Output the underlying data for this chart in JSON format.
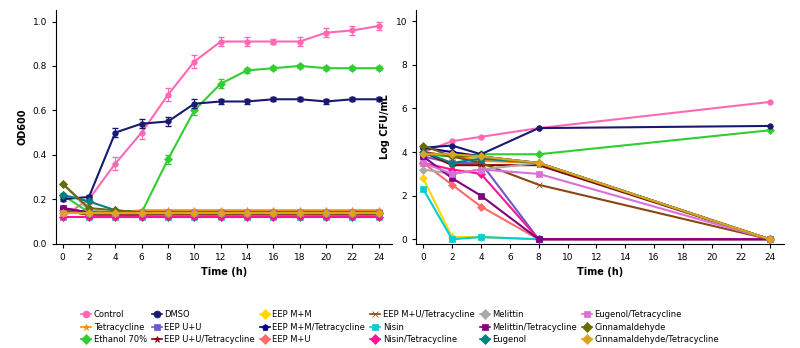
{
  "left_ylabel": "OD600",
  "right_ylabel": "Log CFU/mL",
  "xlabel": "Time (h)",
  "time_left": [
    0,
    2,
    4,
    6,
    8,
    10,
    12,
    14,
    16,
    18,
    20,
    22,
    24
  ],
  "time_right": [
    0,
    2,
    4,
    8,
    24
  ],
  "left_series": {
    "Control": {
      "color": "#FF69B4",
      "marker": "o",
      "data": [
        0.12,
        0.2,
        0.36,
        0.5,
        0.67,
        0.82,
        0.91,
        0.91,
        0.91,
        0.91,
        0.95,
        0.96,
        0.98
      ]
    },
    "Tetracycline": {
      "color": "#FF8C00",
      "marker": "*",
      "data": [
        0.14,
        0.14,
        0.14,
        0.15,
        0.15,
        0.15,
        0.15,
        0.15,
        0.15,
        0.15,
        0.15,
        0.15,
        0.15
      ]
    },
    "Ethanol 70%": {
      "color": "#32CD32",
      "marker": "D",
      "data": [
        0.22,
        0.14,
        0.14,
        0.14,
        0.38,
        0.6,
        0.72,
        0.78,
        0.79,
        0.8,
        0.79,
        0.79,
        0.79
      ]
    },
    "DMSO": {
      "color": "#191970",
      "marker": "o",
      "data": [
        0.2,
        0.21,
        0.5,
        0.54,
        0.55,
        0.63,
        0.64,
        0.64,
        0.65,
        0.65,
        0.64,
        0.65,
        0.65
      ]
    },
    "EEP U+U": {
      "color": "#6A5ACD",
      "marker": "s",
      "data": [
        0.15,
        0.14,
        0.14,
        0.14,
        0.14,
        0.14,
        0.14,
        0.14,
        0.14,
        0.14,
        0.14,
        0.14,
        0.14
      ]
    },
    "EEP U+U/Tetracycline": {
      "color": "#8B0000",
      "marker": "*",
      "data": [
        0.15,
        0.13,
        0.13,
        0.13,
        0.14,
        0.14,
        0.14,
        0.14,
        0.14,
        0.14,
        0.14,
        0.14,
        0.14
      ]
    },
    "EEP M+M": {
      "color": "#FFD700",
      "marker": "D",
      "data": [
        0.15,
        0.14,
        0.14,
        0.14,
        0.14,
        0.14,
        0.14,
        0.14,
        0.14,
        0.14,
        0.14,
        0.14,
        0.14
      ]
    },
    "EEP M+M/Tetracycline": {
      "color": "#00008B",
      "marker": "p",
      "data": [
        0.16,
        0.14,
        0.14,
        0.14,
        0.14,
        0.14,
        0.14,
        0.14,
        0.14,
        0.14,
        0.14,
        0.14,
        0.14
      ]
    },
    "EEP M+U": {
      "color": "#FF6B6B",
      "marker": "D",
      "data": [
        0.15,
        0.13,
        0.13,
        0.14,
        0.14,
        0.14,
        0.14,
        0.14,
        0.14,
        0.14,
        0.14,
        0.14,
        0.14
      ]
    },
    "EEP M+U/Tetracycline": {
      "color": "#8B4513",
      "marker": "x",
      "data": [
        0.15,
        0.13,
        0.13,
        0.13,
        0.13,
        0.13,
        0.13,
        0.13,
        0.13,
        0.13,
        0.13,
        0.13,
        0.13
      ]
    },
    "Nisin": {
      "color": "#00CED1",
      "marker": "s",
      "data": [
        0.12,
        0.12,
        0.12,
        0.12,
        0.12,
        0.12,
        0.12,
        0.12,
        0.12,
        0.12,
        0.12,
        0.12,
        0.12
      ]
    },
    "Nisin/Tetracycline": {
      "color": "#FF1493",
      "marker": "D",
      "data": [
        0.12,
        0.12,
        0.12,
        0.12,
        0.12,
        0.12,
        0.12,
        0.12,
        0.12,
        0.12,
        0.12,
        0.12,
        0.12
      ]
    },
    "Melittin": {
      "color": "#A9A9A9",
      "marker": "D",
      "data": [
        0.27,
        0.15,
        0.14,
        0.14,
        0.14,
        0.14,
        0.14,
        0.14,
        0.14,
        0.14,
        0.14,
        0.14,
        0.14
      ]
    },
    "Melittin/Tetracycline": {
      "color": "#800080",
      "marker": "s",
      "data": [
        0.16,
        0.14,
        0.14,
        0.14,
        0.14,
        0.14,
        0.14,
        0.14,
        0.14,
        0.14,
        0.14,
        0.14,
        0.14
      ]
    },
    "Eugenol": {
      "color": "#008080",
      "marker": "D",
      "data": [
        0.22,
        0.19,
        0.15,
        0.14,
        0.14,
        0.14,
        0.14,
        0.14,
        0.14,
        0.14,
        0.14,
        0.14,
        0.14
      ]
    },
    "Eugenol/Tetracycline": {
      "color": "#DA70D6",
      "marker": "s",
      "data": [
        0.14,
        0.14,
        0.14,
        0.14,
        0.14,
        0.14,
        0.14,
        0.14,
        0.14,
        0.14,
        0.14,
        0.14,
        0.14
      ]
    },
    "Cinnamaldehyde": {
      "color": "#6B6B00",
      "marker": "D",
      "data": [
        0.27,
        0.16,
        0.15,
        0.14,
        0.14,
        0.14,
        0.14,
        0.14,
        0.14,
        0.14,
        0.14,
        0.14,
        0.14
      ]
    },
    "Cinnamaldehyde/Tetracycline": {
      "color": "#DAA520",
      "marker": "D",
      "data": [
        0.14,
        0.14,
        0.14,
        0.14,
        0.14,
        0.14,
        0.14,
        0.14,
        0.14,
        0.14,
        0.14,
        0.14,
        0.14
      ]
    }
  },
  "left_errors": {
    "Control": [
      0.01,
      0.02,
      0.03,
      0.03,
      0.03,
      0.03,
      0.02,
      0.02,
      0.01,
      0.02,
      0.02,
      0.02,
      0.02
    ],
    "DMSO": [
      0.01,
      0.01,
      0.02,
      0.02,
      0.02,
      0.02,
      0.01,
      0.01,
      0.01,
      0.01,
      0.01,
      0.01,
      0.01
    ],
    "Ethanol 70%": [
      0.01,
      0.01,
      0.01,
      0.01,
      0.02,
      0.02,
      0.02,
      0.01,
      0.01,
      0.01,
      0.01,
      0.01,
      0.01
    ]
  },
  "right_series": {
    "Control": {
      "color": "#FF69B4",
      "marker": "o",
      "data": [
        4.0,
        4.5,
        4.7,
        5.1,
        6.3
      ]
    },
    "Tetracycline": {
      "color": "#FF8C00",
      "marker": "*",
      "data": [
        4.0,
        3.8,
        3.6,
        3.5,
        0.0
      ]
    },
    "Ethanol 70%": {
      "color": "#32CD32",
      "marker": "D",
      "data": [
        3.9,
        3.8,
        3.9,
        3.9,
        5.0
      ]
    },
    "DMSO": {
      "color": "#191970",
      "marker": "o",
      "data": [
        4.2,
        4.3,
        3.9,
        5.1,
        5.2
      ]
    },
    "EEP U+U": {
      "color": "#6A5ACD",
      "marker": "s",
      "data": [
        3.8,
        3.5,
        3.5,
        0.0,
        0.0
      ]
    },
    "EEP U+U/Tetracycline": {
      "color": "#8B0000",
      "marker": "*",
      "data": [
        4.0,
        3.4,
        3.4,
        3.4,
        0.0
      ]
    },
    "EEP M+M": {
      "color": "#FFD700",
      "marker": "D",
      "data": [
        2.8,
        0.1,
        0.1,
        0.0,
        0.0
      ]
    },
    "EEP M+M/Tetracycline": {
      "color": "#00008B",
      "marker": "p",
      "data": [
        4.2,
        4.0,
        3.8,
        3.5,
        0.0
      ]
    },
    "EEP M+U": {
      "color": "#FF6B6B",
      "marker": "D",
      "data": [
        3.5,
        2.5,
        1.5,
        0.0,
        0.0
      ]
    },
    "EEP M+U/Tetracycline": {
      "color": "#8B4513",
      "marker": "x",
      "data": [
        4.0,
        3.8,
        3.5,
        2.5,
        0.0
      ]
    },
    "Nisin": {
      "color": "#00CED1",
      "marker": "s",
      "data": [
        2.3,
        0.0,
        0.1,
        0.0,
        0.0
      ]
    },
    "Nisin/Tetracycline": {
      "color": "#FF1493",
      "marker": "D",
      "data": [
        3.5,
        3.2,
        3.0,
        0.0,
        0.0
      ]
    },
    "Melittin": {
      "color": "#A9A9A9",
      "marker": "D",
      "data": [
        3.2,
        3.0,
        3.2,
        3.5,
        0.0
      ]
    },
    "Melittin/Tetracycline": {
      "color": "#800080",
      "marker": "s",
      "data": [
        3.8,
        2.8,
        2.0,
        0.0,
        0.0
      ]
    },
    "Eugenol": {
      "color": "#008080",
      "marker": "D",
      "data": [
        4.0,
        3.5,
        3.7,
        3.5,
        0.0
      ]
    },
    "Eugenol/Tetracycline": {
      "color": "#DA70D6",
      "marker": "s",
      "data": [
        3.5,
        3.0,
        3.2,
        3.0,
        0.0
      ]
    },
    "Cinnamaldehyde": {
      "color": "#6B6B00",
      "marker": "D",
      "data": [
        4.3,
        3.8,
        3.8,
        3.5,
        0.0
      ]
    },
    "Cinnamaldehyde/Tetracycline": {
      "color": "#DAA520",
      "marker": "D",
      "data": [
        3.9,
        3.9,
        3.8,
        3.5,
        0.0
      ]
    }
  },
  "legend_order": [
    "Control",
    "Tetracycline",
    "Ethanol 70%",
    "DMSO",
    "EEP U+U",
    "EEP U+U/Tetracycline",
    "EEP M+M",
    "EEP M+M/Tetracycline",
    "EEP M+U",
    "EEP M+U/Tetracycline",
    "Nisin",
    "Nisin/Tetracycline",
    "Melittin",
    "Melittin/Tetracycline",
    "Eugenol",
    "Eugenol/Tetracycline",
    "Cinnamaldehyde",
    "Cinnamaldehyde/Tetracycline"
  ]
}
